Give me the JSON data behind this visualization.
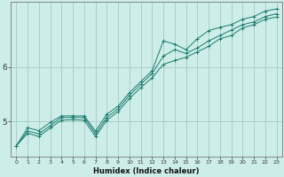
{
  "xlabel": "Humidex (Indice chaleur)",
  "x_values": [
    0,
    1,
    2,
    3,
    4,
    5,
    6,
    7,
    8,
    9,
    10,
    11,
    12,
    13,
    14,
    15,
    16,
    17,
    18,
    19,
    20,
    21,
    22,
    23
  ],
  "line1": [
    4.55,
    4.78,
    4.72,
    4.88,
    5.02,
    5.03,
    5.02,
    4.72,
    5.02,
    5.18,
    5.42,
    5.62,
    5.8,
    6.05,
    6.12,
    6.18,
    6.28,
    6.38,
    6.52,
    6.58,
    6.72,
    6.78,
    6.88,
    6.92
  ],
  "line2": [
    4.55,
    4.82,
    4.77,
    4.92,
    5.07,
    5.07,
    5.07,
    4.77,
    5.07,
    5.23,
    5.48,
    5.68,
    5.88,
    6.2,
    6.32,
    6.25,
    6.35,
    6.48,
    6.58,
    6.68,
    6.78,
    6.83,
    6.93,
    6.98
  ],
  "line3": [
    4.55,
    4.88,
    4.83,
    4.98,
    5.1,
    5.1,
    5.1,
    4.82,
    5.13,
    5.28,
    5.53,
    5.73,
    5.93,
    6.48,
    6.42,
    6.32,
    6.52,
    6.67,
    6.73,
    6.78,
    6.88,
    6.93,
    7.03,
    7.07
  ],
  "line_color": "#1a7a6e",
  "bg_color": "#cdeee8",
  "grid_color": "#a8cfc8",
  "ylim": [
    4.35,
    7.2
  ],
  "yticks": [
    5,
    6
  ],
  "xlim": [
    -0.5,
    23.5
  ]
}
